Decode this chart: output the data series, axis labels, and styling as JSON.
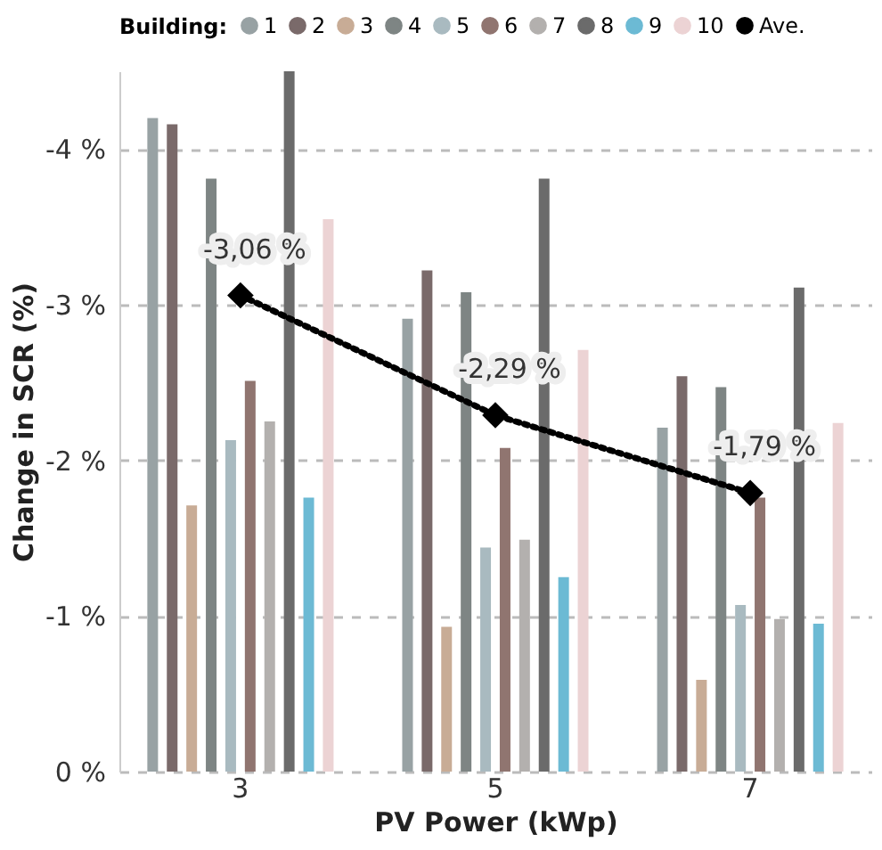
{
  "chart_data": {
    "type": "bar",
    "xlabel": "PV Power (kWp)",
    "ylabel": "Change in SCR (%)",
    "legend_title": "Building:",
    "legend": "top",
    "grid": "y",
    "categories": [
      "3",
      "5",
      "7"
    ],
    "ylim": [
      0,
      -4.5
    ],
    "yticks": [
      {
        "value": 0,
        "label": "0 %"
      },
      {
        "value": -1,
        "label": "-1 %"
      },
      {
        "value": -2,
        "label": "-2 %"
      },
      {
        "value": -3,
        "label": "-3 %"
      },
      {
        "value": -4,
        "label": "-4 %"
      }
    ],
    "series": [
      {
        "name": "1",
        "color": "#98a2a4",
        "values": [
          -4.2,
          -2.91,
          -2.21
        ]
      },
      {
        "name": "2",
        "color": "#7a6a6a",
        "values": [
          -4.16,
          -3.22,
          -2.54
        ]
      },
      {
        "name": "3",
        "color": "#c8ac96",
        "values": [
          -1.71,
          -0.93,
          -0.59
        ]
      },
      {
        "name": "4",
        "color": "#7e8584",
        "values": [
          -3.81,
          -3.08,
          -2.47
        ]
      },
      {
        "name": "5",
        "color": "#a9bac0",
        "values": [
          -2.13,
          -1.44,
          -1.07
        ]
      },
      {
        "name": "6",
        "color": "#907570",
        "values": [
          -2.51,
          -2.08,
          -1.76
        ]
      },
      {
        "name": "7",
        "color": "#b3b0ae",
        "values": [
          -2.25,
          -1.49,
          -0.98
        ]
      },
      {
        "name": "8",
        "color": "#6b6b6b",
        "values": [
          -4.5,
          -3.81,
          -3.11
        ]
      },
      {
        "name": "9",
        "color": "#6cbad4",
        "values": [
          -1.76,
          -1.25,
          -0.95
        ]
      },
      {
        "name": "10",
        "color": "#ecd3d4",
        "values": [
          -3.55,
          -2.71,
          -2.24
        ]
      },
      {
        "name": "Ave.",
        "type": "line",
        "color": "#000000",
        "marker": "diamond",
        "line_style": "dotted",
        "values": [
          -3.06,
          -2.29,
          -1.79
        ],
        "value_labels": [
          "-3,06 %",
          "-2,29 %",
          "-1,79 %"
        ]
      }
    ]
  }
}
